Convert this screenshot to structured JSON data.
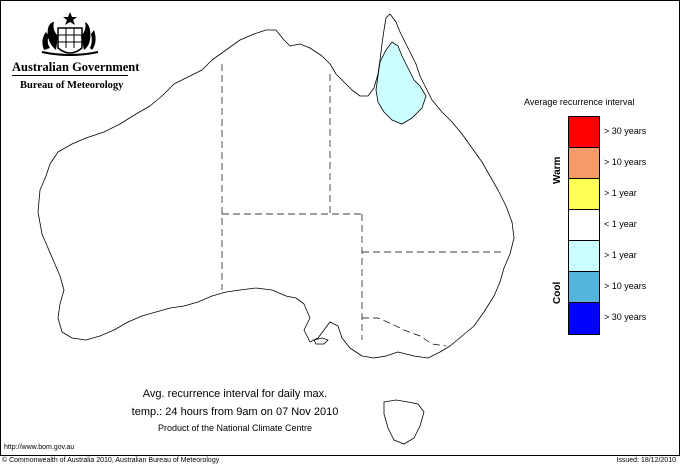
{
  "header": {
    "government": "Australian Government",
    "bureau": "Bureau of Meteorology"
  },
  "legend": {
    "title": "Average recurrence interval",
    "warm_label": "Warm",
    "cool_label": "Cool",
    "items": [
      {
        "label": "> 30 years",
        "color": "#ff0000"
      },
      {
        "label": "> 10 years",
        "color": "#f79a6a"
      },
      {
        "label": "> 1 year",
        "color": "#ffff55"
      },
      {
        "label": "< 1 year",
        "color": "#ffffff"
      },
      {
        "label": "> 1 year",
        "color": "#ccffff"
      },
      {
        "label": "> 10 years",
        "color": "#55b4dc"
      },
      {
        "label": "> 30 years",
        "color": "#0000ff"
      }
    ]
  },
  "map": {
    "region_fill": "#ccffff",
    "region_category": "> 1 year (cool)"
  },
  "caption": {
    "line1": "Avg. recurrence interval for daily max.",
    "line2": "temp.: 24 hours from 9am on 07 Nov 2010",
    "line3": "Product of the National Climate Centre"
  },
  "footer": {
    "url": "http://www.bom.gov.au",
    "copyright": "© Commonwealth of Australia 2010, Australian Bureau of Meteorology",
    "issued": "Issued: 18/12/2010"
  }
}
